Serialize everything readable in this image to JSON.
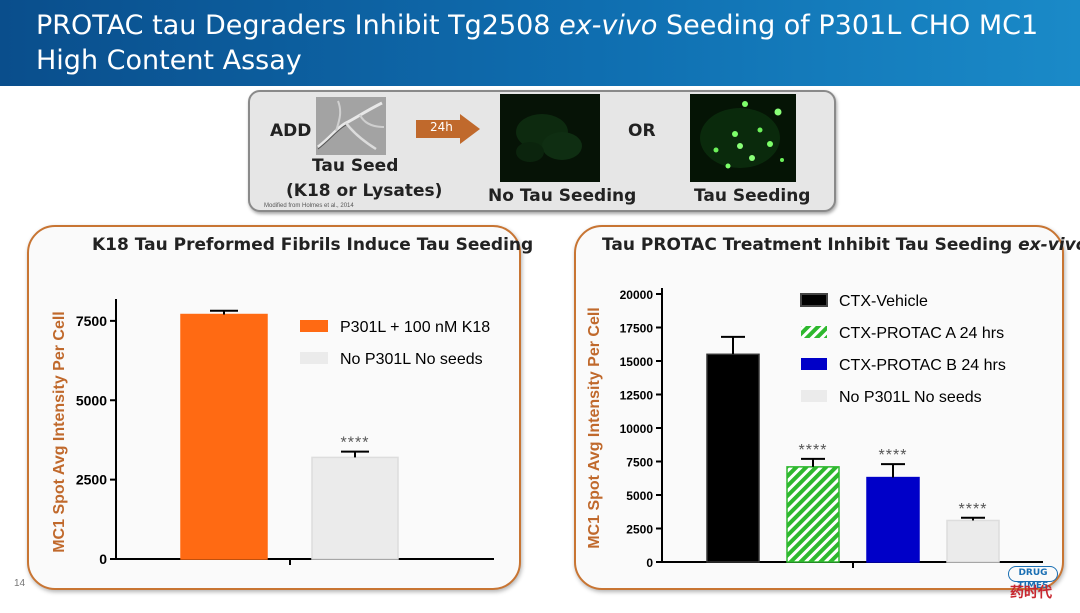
{
  "header": {
    "title_part1": "PROTAC tau Degraders Inhibit Tg2508 ",
    "title_italic": "ex-vivo",
    "title_part2": " Seeding of P301L CHO MC1",
    "title_line2": "High Content Assay"
  },
  "seeding_schematic": {
    "add_label": "ADD",
    "seed_label": "Tau Seed",
    "seed_sublabel": "(K18 or Lysates)",
    "arrow_label": "24h",
    "no_seeding_label": "No Tau Seeding",
    "or_label": "OR",
    "seeding_label": "Tau Seeding",
    "citation": "Modified from Holmes et al., 2014"
  },
  "chart_data": [
    {
      "type": "bar",
      "title": "K18 Tau Preformed Fibrils Induce Tau Seeding",
      "ylabel": "MC1 Spot Avg Intensity Per Cell",
      "xlabel": "",
      "ylim": [
        0,
        8000
      ],
      "yticks": [
        0,
        2500,
        5000,
        7500
      ],
      "ytick_labels": [
        "0",
        "2500",
        "5000",
        "7500"
      ],
      "legend_position": "top-right",
      "categories": [
        "P301L + 100 nM K18",
        "No P301L No seeds"
      ],
      "values": [
        7700,
        3200
      ],
      "errors": [
        120,
        180
      ],
      "significance": [
        "",
        "****"
      ],
      "colors": [
        "#ff6a13",
        "#ebebeb"
      ]
    },
    {
      "type": "bar",
      "title_part1": "Tau PROTAC Treatment Inhibit Tau Seeding ",
      "title_italic": "ex-vivo",
      "ylabel": "MC1 Spot Avg Intensity Per Cell",
      "xlabel": "",
      "ylim": [
        0,
        20000
      ],
      "yticks": [
        0,
        2500,
        5000,
        7500,
        10000,
        12500,
        15000,
        17500,
        20000
      ],
      "ytick_labels": [
        "0",
        "2500",
        "5000",
        "7500",
        "10000",
        "12500",
        "15000",
        "17500",
        "20000"
      ],
      "legend_position": "top-right",
      "categories": [
        "CTX-Vehicle",
        "CTX-PROTAC A 24 hrs",
        "CTX-PROTAC B 24 hrs",
        "No P301L No seeds"
      ],
      "values": [
        15500,
        7100,
        6300,
        3100
      ],
      "errors": [
        1300,
        600,
        1000,
        200
      ],
      "significance": [
        "",
        "****",
        "****",
        "****"
      ],
      "colors": [
        "#000000",
        "#2eb82e",
        "#0000c8",
        "#ebebeb"
      ],
      "patterns": [
        "solid",
        "hatched",
        "solid",
        "solid"
      ]
    }
  ],
  "footer": {
    "slide_number": "14",
    "logo_en": "DRUG TIMES",
    "logo_cn": "药时代"
  }
}
